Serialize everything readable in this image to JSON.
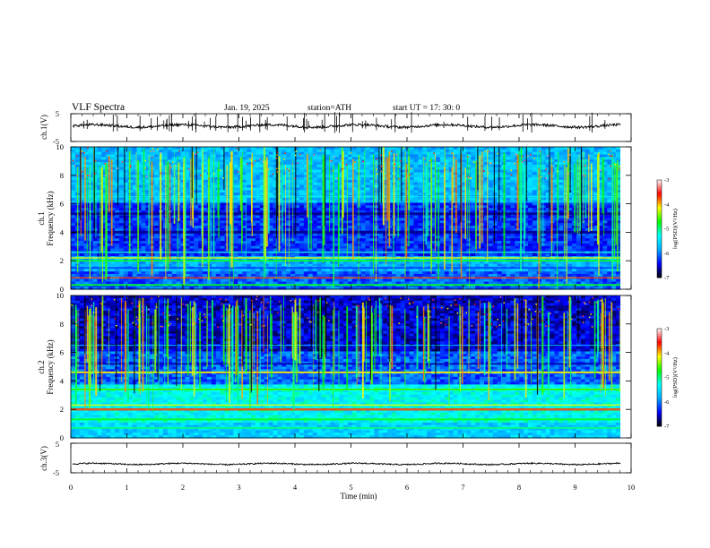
{
  "header": {
    "title": "VLF  Spectra",
    "date": "Jan. 19, 2025",
    "station": "station=ATH",
    "start": "start  UT  =   17: 30: 0"
  },
  "chart_data": [
    {
      "type": "line",
      "panel": "ch1-waveform",
      "ylabel": "ch.1(V)",
      "ylim": [
        -5,
        5
      ],
      "yticks": [
        "5",
        "-5"
      ],
      "xlim": [
        0,
        10
      ],
      "series": [
        {
          "values_description": "noisy voltage trace oscillating around +0.5 V with sharp spikes"
        }
      ]
    },
    {
      "type": "heatmap",
      "panel": "ch1-spectrogram",
      "ylabel_top": "ch.1",
      "ylabel": "Frequency  (kHz)",
      "ylim": [
        0,
        10
      ],
      "yticks": [
        "0",
        "2",
        "4",
        "6",
        "8",
        "10"
      ],
      "xlim": [
        0,
        9.8
      ],
      "colorbar": {
        "label": "log(PSD)(V²/Hz)",
        "ticks": [
          "-3",
          "-4",
          "-5",
          "-6",
          "-7"
        ],
        "range": [
          -7,
          -3
        ]
      },
      "colormap": [
        "#000000",
        "#0000ff",
        "#00aaff",
        "#00ffff",
        "#00ff00",
        "#ffff00",
        "#ff0000",
        "#ffffff"
      ],
      "bands_khz": [
        0.3,
        0.8,
        1.5,
        2.0,
        2.2,
        2.6,
        4.0,
        5.3,
        6.5
      ],
      "features": "broadband vertical sferic streaks across 0-10 kHz; horizontal transmitter lines near 2.1 kHz"
    },
    {
      "type": "heatmap",
      "panel": "ch2-spectrogram",
      "ylabel_top": "ch.2",
      "ylabel": "Frequency  (kHz)",
      "ylim": [
        0,
        10
      ],
      "yticks": [
        "0",
        "2",
        "4",
        "6",
        "8",
        "10"
      ],
      "xlim": [
        0,
        9.8
      ],
      "colorbar": {
        "label": "log(PSD)(V²/Hz)",
        "ticks": [
          "-3",
          "-4",
          "-5",
          "-6",
          "-7"
        ],
        "range": [
          -7,
          -3
        ]
      },
      "bands_khz": [
        0.7,
        1.3,
        2.0,
        2.3,
        3.4,
        4.6,
        5.2,
        6.5
      ],
      "features": "stronger broadband noise below 4 kHz; red horizontal line near 2.1 kHz"
    },
    {
      "type": "line",
      "panel": "ch3-waveform",
      "ylabel": "ch.3(V)",
      "ylim": [
        -5,
        5
      ],
      "yticks": [
        "5",
        "-5"
      ],
      "xlim": [
        0,
        10
      ],
      "series": [
        {
          "values_description": "flat trace near -2 V"
        }
      ]
    }
  ],
  "xaxis": {
    "label": "Time  (min)",
    "ticks": [
      "0",
      "1",
      "2",
      "3",
      "4",
      "5",
      "6",
      "7",
      "8",
      "9",
      "10"
    ],
    "xlim": [
      0,
      10
    ]
  }
}
